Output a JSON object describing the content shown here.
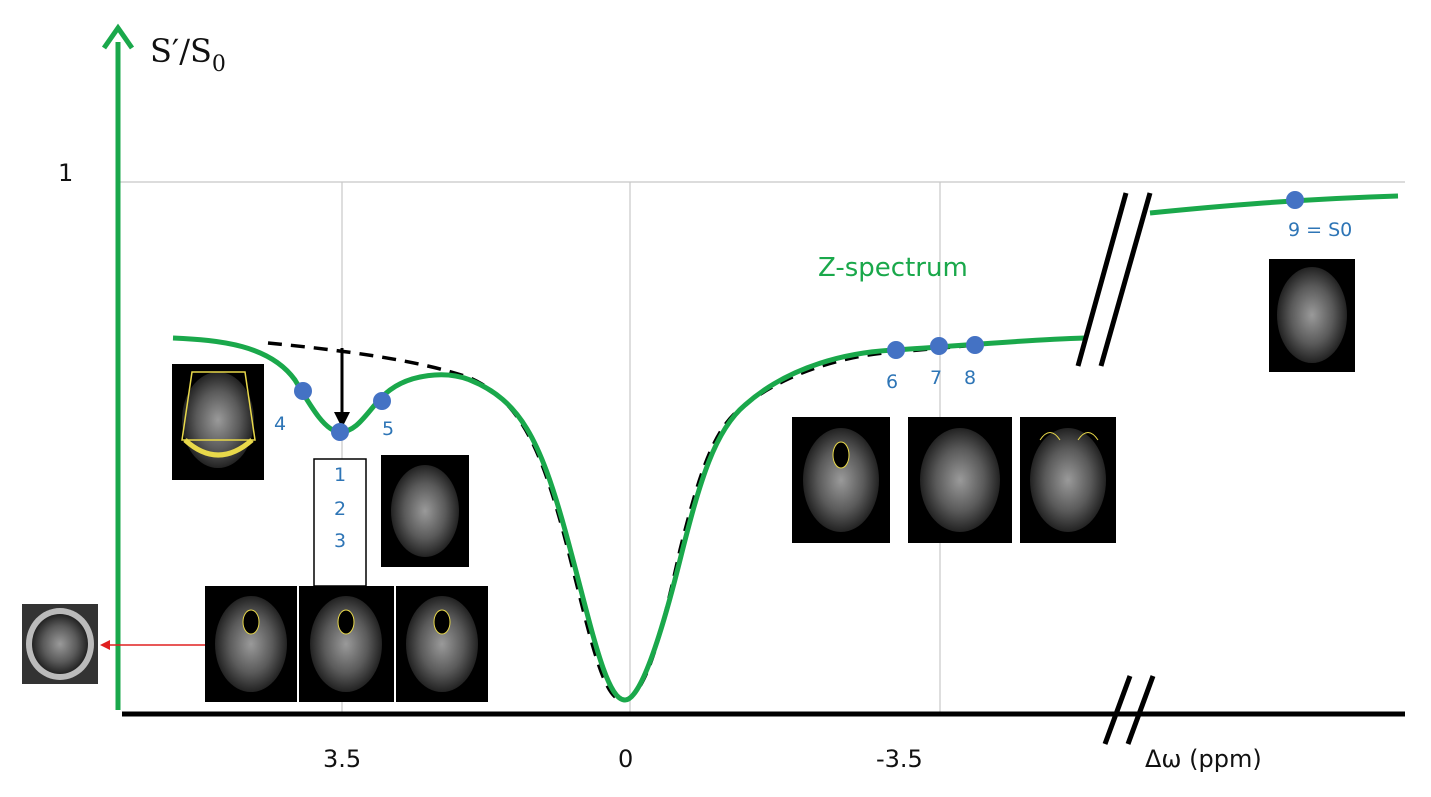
{
  "axes": {
    "y_label": "S′/S",
    "y_label_sub": "0",
    "y_tick": "1",
    "x_ticks": [
      "3.5",
      "0",
      "-3.5"
    ],
    "x_label": "Δω (ppm)"
  },
  "curve_label": "Z-spectrum",
  "points": [
    "4",
    "5",
    "6",
    "7",
    "8",
    "9 = S0"
  ],
  "stack_labels": [
    "1",
    "2",
    "3"
  ]
}
